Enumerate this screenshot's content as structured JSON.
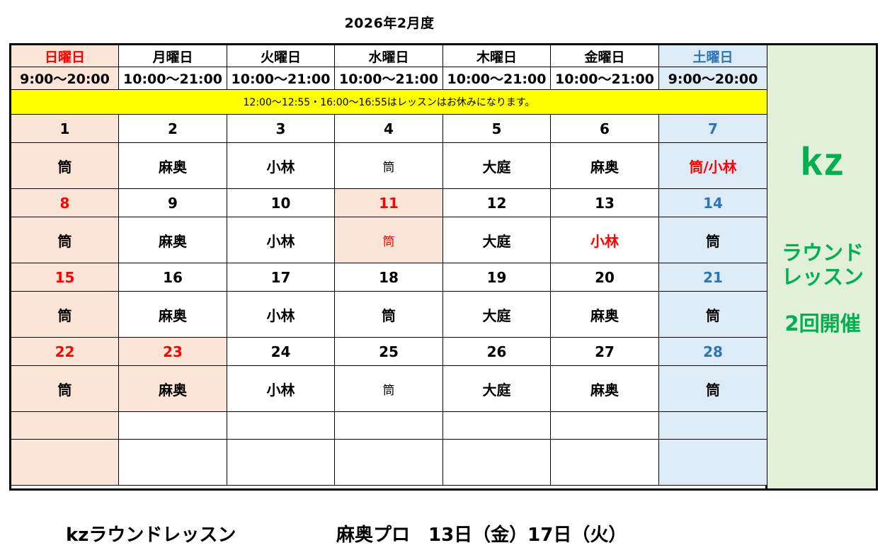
{
  "title": "2026年2月度",
  "weekdays": [
    "日曜日",
    "月曜日",
    "火曜日",
    "水曜日",
    "木曜日",
    "金曜日",
    "土曜日"
  ],
  "hours": [
    "9:00～20:00",
    "10:00～21:00",
    "10:00～21:00",
    "10:00～21:00",
    "10:00～21:00",
    "10:00～21:00",
    "9:00～20:00"
  ],
  "notice": "12:00～12:55・16:00～16:55はレッスンはお休みになります。",
  "weeks": [
    {
      "days": [
        "1",
        "2",
        "3",
        "4",
        "5",
        "6",
        "7"
      ],
      "names": [
        "筒",
        "麻奥",
        "小林",
        "筒",
        "大庭",
        "麻奥",
        "筒/小林"
      ]
    },
    {
      "days": [
        "8",
        "9",
        "10",
        "11",
        "12",
        "13",
        "14"
      ],
      "names": [
        "筒",
        "麻奥",
        "小林",
        "筒",
        "大庭",
        "小林",
        "筒"
      ]
    },
    {
      "days": [
        "15",
        "16",
        "17",
        "18",
        "19",
        "20",
        "21"
      ],
      "names": [
        "筒",
        "麻奥",
        "小林",
        "筒",
        "大庭",
        "麻奥",
        "筒"
      ]
    },
    {
      "days": [
        "22",
        "23",
        "24",
        "25",
        "26",
        "27",
        "28"
      ],
      "names": [
        "筒",
        "麻奥",
        "小林",
        "筒",
        "大庭",
        "麻奥",
        "筒"
      ]
    }
  ],
  "side": {
    "logo": "kz",
    "line1": "ラウンド",
    "line2": "レッスン",
    "line3": "2回開催"
  },
  "footer": {
    "left": "kzラウンドレッスン",
    "right": "麻奥プロ　13日（金）17日（火）"
  },
  "colors": {
    "sunday_bg": "#fce4d6",
    "saturday_bg": "#ddebf7",
    "notice_bg": "#ffff00",
    "side_bg": "#e2efd9",
    "brand_green": "#00b050",
    "holiday_red": "#ff0000",
    "saturday_blue": "#2e75b6"
  }
}
